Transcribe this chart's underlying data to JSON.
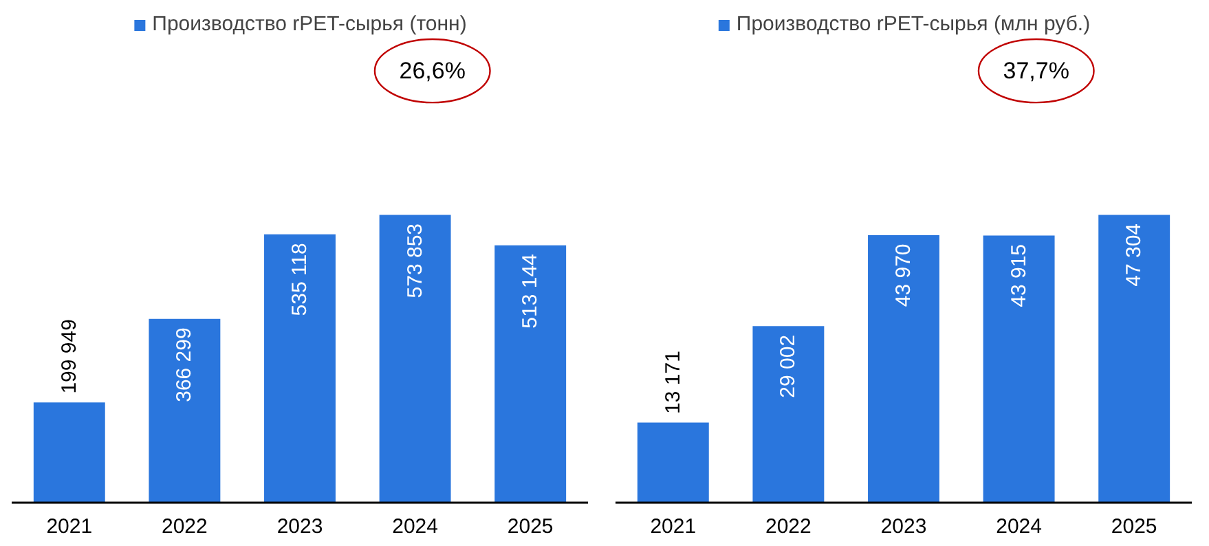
{
  "chart_data": [
    {
      "type": "bar",
      "categories": [
        "2021",
        "2022",
        "2023",
        "2024",
        "2025"
      ],
      "series": [
        {
          "name": "Производство rPET-сырья (тонн)",
          "color": "#2a76dd",
          "values": [
            199949,
            366299,
            535118,
            573853,
            513144
          ]
        }
      ],
      "data_labels": true,
      "annotations": [
        "26,6%"
      ],
      "legend": "top",
      "grid": false
    },
    {
      "type": "bar",
      "categories": [
        "2021",
        "2022",
        "2023",
        "2024",
        "2025"
      ],
      "series": [
        {
          "name": "Производство rPET-сырья (млн руб.)",
          "color": "#2a76dd",
          "values": [
            13171,
            29002,
            43970,
            43915,
            47304
          ]
        }
      ],
      "data_labels": true,
      "annotations": [
        "37,7%"
      ],
      "legend": "top",
      "grid": false
    }
  ]
}
